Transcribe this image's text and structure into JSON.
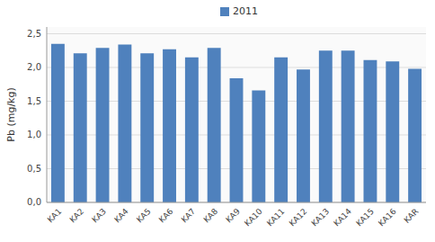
{
  "chart_data": {
    "type": "bar",
    "categories": [
      "KA1",
      "KA2",
      "KA3",
      "KA4",
      "KA5",
      "KA6",
      "KA7",
      "KA8",
      "KA9",
      "KA10",
      "KA11",
      "KA12",
      "KA13",
      "KA14",
      "KA15",
      "KA16",
      "KAR"
    ],
    "series": [
      {
        "name": "2011",
        "color": "#4F81BD",
        "values": [
          2.35,
          2.21,
          2.29,
          2.34,
          2.21,
          2.27,
          2.15,
          2.29,
          1.84,
          1.66,
          2.15,
          1.97,
          2.25,
          2.25,
          2.11,
          2.09,
          1.98
        ]
      }
    ],
    "ylabel": "Pb (mg/kg)",
    "ylim": [
      0,
      2.6
    ],
    "yticks": [
      {
        "value": 0.0,
        "label": "0,0"
      },
      {
        "value": 0.5,
        "label": "0,5"
      },
      {
        "value": 1.0,
        "label": "1,0"
      },
      {
        "value": 1.5,
        "label": "1,5"
      },
      {
        "value": 2.0,
        "label": "2,0"
      },
      {
        "value": 2.5,
        "label": "2,5"
      }
    ],
    "grid": true,
    "legend": "top"
  }
}
